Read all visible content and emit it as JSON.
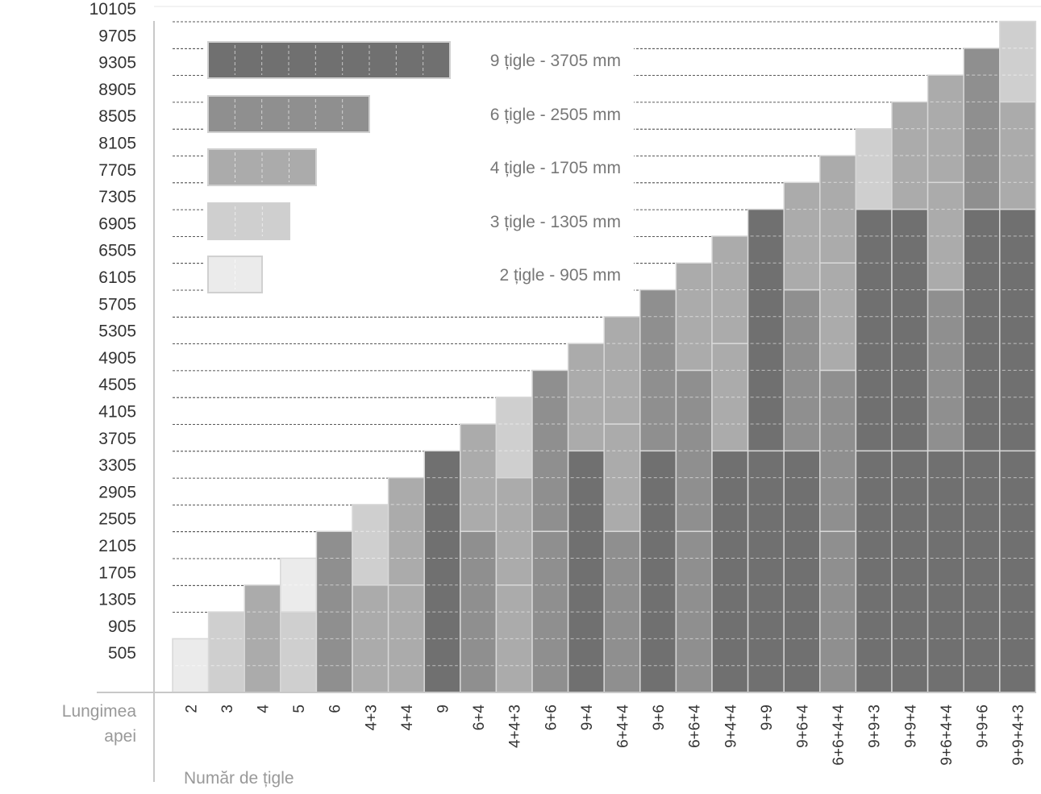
{
  "chart_data": {
    "type": "bar",
    "title": "",
    "ylabel": "Lungimea apei",
    "xlabel": "Număr de țigle",
    "yticks": [
      505,
      905,
      1305,
      1705,
      2105,
      2505,
      2905,
      3305,
      3705,
      4105,
      4505,
      4905,
      5305,
      5705,
      6105,
      6505,
      6905,
      7305,
      7705,
      8105,
      8505,
      8905,
      9305,
      9705,
      10105
    ],
    "tile_pitch_mm": 400,
    "grid": true,
    "legend_position": "top-left",
    "legend": [
      {
        "tiles": 9,
        "label": "9 țigle - 3705 mm",
        "color": "#707070"
      },
      {
        "tiles": 6,
        "label": "6 țigle - 2505 mm",
        "color": "#8f8f8f"
      },
      {
        "tiles": 4,
        "label": "4 țigle - 1705 mm",
        "color": "#ababab"
      },
      {
        "tiles": 3,
        "label": "3 țigle - 1305 mm",
        "color": "#cfcfcf"
      },
      {
        "tiles": 2,
        "label": "2 țigle - 905 mm",
        "color": "#ebebeb"
      }
    ],
    "categories": [
      "2",
      "3",
      "4",
      "5",
      "6",
      "4+3",
      "4+4",
      "9",
      "6+4",
      "4+4+3",
      "6+6",
      "9+4",
      "6+4+4",
      "9+6",
      "6+6+4",
      "9+4+4",
      "9+9",
      "9+6+4",
      "6+6+4+4",
      "9+9+3",
      "9+9+4",
      "9+6+4+4",
      "9+9+6",
      "9+9+4+3"
    ],
    "stacks": [
      [
        2
      ],
      [
        3
      ],
      [
        4
      ],
      [
        3,
        2
      ],
      [
        6
      ],
      [
        4,
        3
      ],
      [
        4,
        4
      ],
      [
        9
      ],
      [
        6,
        4
      ],
      [
        4,
        4,
        3
      ],
      [
        6,
        6
      ],
      [
        9,
        4
      ],
      [
        6,
        4,
        4
      ],
      [
        9,
        6
      ],
      [
        6,
        6,
        4
      ],
      [
        9,
        4,
        4
      ],
      [
        9,
        9
      ],
      [
        9,
        6,
        4
      ],
      [
        6,
        6,
        4,
        4
      ],
      [
        9,
        9,
        3
      ],
      [
        9,
        9,
        4
      ],
      [
        9,
        6,
        4,
        4
      ],
      [
        9,
        9,
        6
      ],
      [
        9,
        9,
        4,
        3
      ]
    ],
    "values": [
      905,
      1305,
      1705,
      2105,
      2505,
      2905,
      3305,
      3705,
      4105,
      4505,
      4905,
      5305,
      5705,
      6105,
      6505,
      6905,
      7305,
      7705,
      8105,
      8505,
      8905,
      9305,
      9705,
      10105
    ]
  }
}
